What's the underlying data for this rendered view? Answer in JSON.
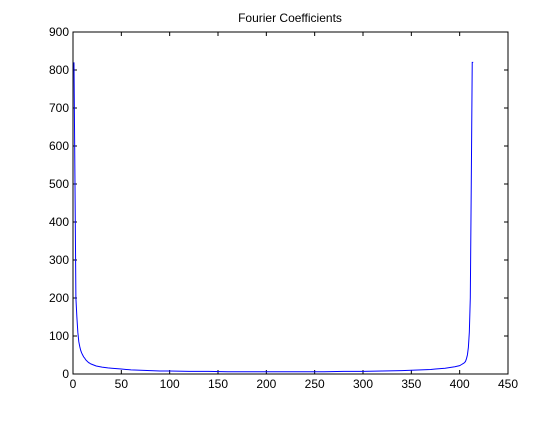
{
  "chart_data": {
    "type": "line",
    "title": "Fourier Coefficients",
    "xlabel": "",
    "ylabel": "",
    "xlim": [
      0,
      450
    ],
    "ylim": [
      0,
      900
    ],
    "xticks": [
      0,
      50,
      100,
      150,
      200,
      250,
      300,
      350,
      400,
      450
    ],
    "yticks": [
      0,
      100,
      200,
      300,
      400,
      500,
      600,
      700,
      800,
      900
    ],
    "grid": false,
    "legend": "none",
    "line_color": "#0000ff",
    "series": [
      {
        "x": [
          1,
          2,
          3,
          4,
          5,
          6,
          7,
          8,
          9,
          10,
          11,
          12,
          13,
          14,
          15,
          16,
          17,
          18,
          19,
          20,
          22,
          24,
          26,
          28,
          30,
          33,
          36,
          40,
          45,
          50,
          55,
          60,
          70,
          80,
          90,
          100,
          120,
          140,
          160,
          180,
          200,
          220,
          240,
          260,
          280,
          300,
          320,
          340,
          350,
          360,
          370,
          375,
          380,
          385,
          390,
          395,
          400,
          402,
          404,
          405,
          406,
          407,
          408,
          409,
          410,
          411,
          412,
          413,
          414
        ],
        "y": [
          820,
          520,
          200,
          150,
          110,
          85,
          72,
          62,
          55,
          50,
          45,
          42,
          38,
          35,
          33,
          30,
          29,
          27,
          26,
          25,
          23,
          21,
          20,
          19,
          18,
          17,
          16,
          15,
          14,
          13,
          12,
          11,
          10,
          9,
          8,
          8,
          7,
          7,
          6,
          6,
          6,
          6,
          6,
          6,
          7,
          7,
          8,
          9,
          10,
          11,
          12,
          13,
          14,
          15,
          17,
          19,
          22,
          25,
          28,
          30,
          33,
          40,
          50,
          70,
          110,
          200,
          500,
          820,
          820
        ]
      }
    ]
  }
}
